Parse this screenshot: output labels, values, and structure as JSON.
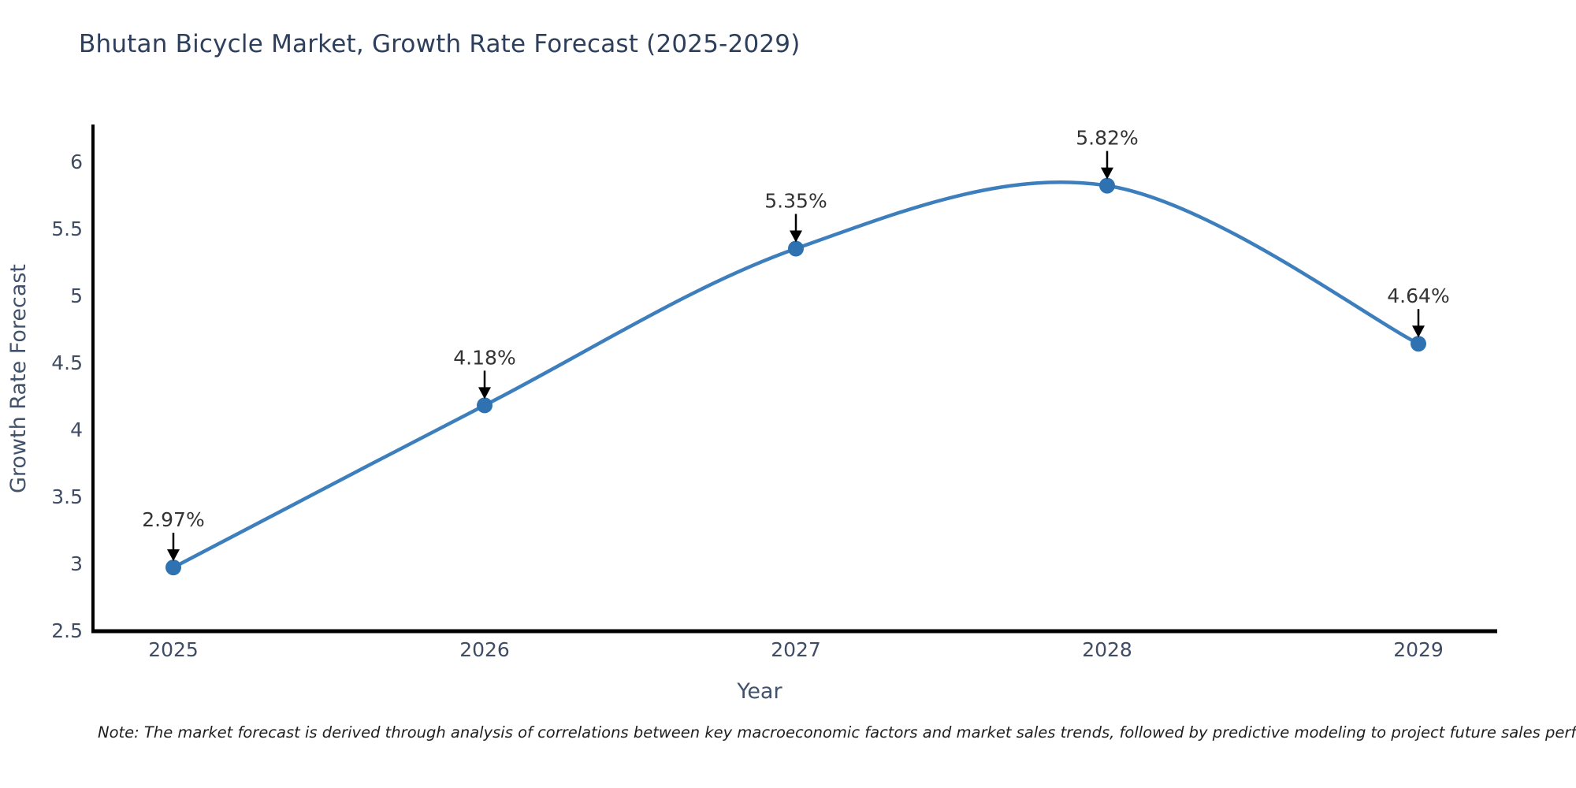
{
  "chart_data": {
    "type": "line",
    "title": "Bhutan Bicycle Market, Growth Rate Forecast (2025-2029)",
    "xlabel": "Year",
    "ylabel": "Growth Rate Forecast",
    "categories": [
      "2025",
      "2026",
      "2027",
      "2028",
      "2029"
    ],
    "series": [
      {
        "name": "Growth Rate Forecast",
        "values": [
          2.97,
          4.18,
          5.35,
          5.82,
          4.64
        ],
        "point_labels": [
          "2.97%",
          "4.18%",
          "5.35%",
          "5.82%",
          "4.64%"
        ]
      }
    ],
    "y_ticks": [
      6,
      5.5,
      5,
      4.5,
      4,
      3.5,
      3,
      2.5
    ],
    "ylim": [
      2.5,
      6.29
    ],
    "grid": false,
    "legend": "none",
    "line_style": "spline",
    "marker": "circle",
    "annotations": "arrow-down-to-point",
    "colors": {
      "line": "#3d7ebd",
      "marker": "#2f72b2",
      "axis": "#000000",
      "title_text": "#2e3f5c",
      "tick_text": "#3f4c63",
      "axis_title_text": "#42526b",
      "label_text": "#333333",
      "arrow": "#000000",
      "note_text": "#1f1f1f",
      "background": "#ffffff"
    }
  },
  "note": "Note: The market forecast is derived through analysis of correlations between key macroeconomic factors and market sales trends, followed by predictive modeling to project future sales performance"
}
